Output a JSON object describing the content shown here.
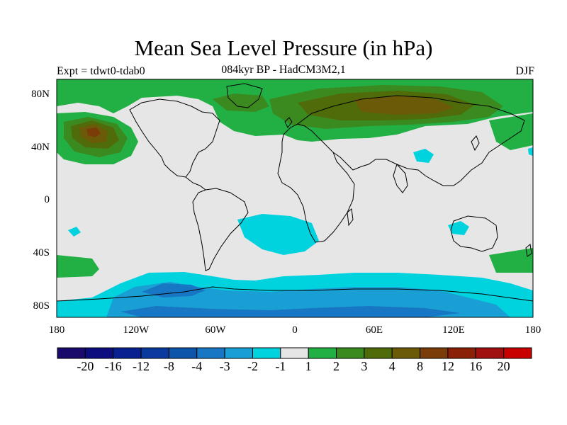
{
  "title": "Mean Sea Level Pressure (in hPa)",
  "experiment_label": "Expt = tdwt0-tdab0",
  "subtitle": "084kyr BP - HadCM3M2,1",
  "season": "DJF",
  "map": {
    "projection": "cylindrical equidistant",
    "background_color": "#e6e6e6",
    "lat_ticks": [
      "80N",
      "40N",
      "0",
      "40S",
      "80S"
    ],
    "lon_ticks": [
      "180",
      "120W",
      "60W",
      "0",
      "60E",
      "120E",
      "180"
    ]
  },
  "colorbar": {
    "colors": [
      "#1a0a6b",
      "#0d0d80",
      "#082090",
      "#0a3a9e",
      "#0c55aa",
      "#1777c4",
      "#1a9fd4",
      "#00d2de",
      "#e6e6e6",
      "#22b045",
      "#3a8a1f",
      "#4f6b0a",
      "#6b5a08",
      "#7a3c08",
      "#8b2008",
      "#a01010",
      "#c80000"
    ],
    "labels": [
      "-20",
      "-16",
      "-12",
      "-8",
      "-4",
      "-3",
      "-2",
      "-1",
      "1",
      "2",
      "3",
      "4",
      "8",
      "12",
      "16",
      "20"
    ]
  }
}
